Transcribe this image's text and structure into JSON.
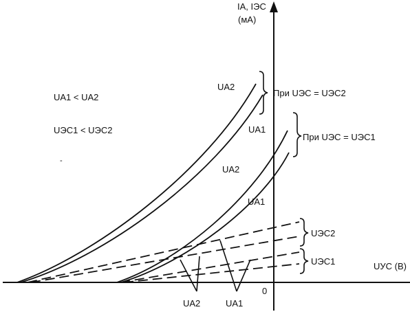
{
  "axes": {
    "y_label_line1": "IА, IЭС",
    "y_label_line2": "(мА)",
    "x_label": "UУС (В)",
    "origin_label": "0"
  },
  "conditions": {
    "line1": "UА1 < UА2",
    "line2": "UЭС1 < UЭС2"
  },
  "bracket_labels": {
    "upper": "При UЭС = UЭС2",
    "lower": "При UЭС = UЭС1"
  },
  "curve_labels": {
    "ua2_top": "UА2",
    "ua1_top": "UА1",
    "ua2_mid": "UА2",
    "ua1_mid": "UА1"
  },
  "dashed_labels": {
    "ues2": "UЭС2",
    "ues1": "UЭС1"
  },
  "bottom_labels": {
    "ua2": "UА2",
    "ua1": "UА1"
  },
  "colors": {
    "ink": "#111111",
    "background": "#ffffff"
  }
}
